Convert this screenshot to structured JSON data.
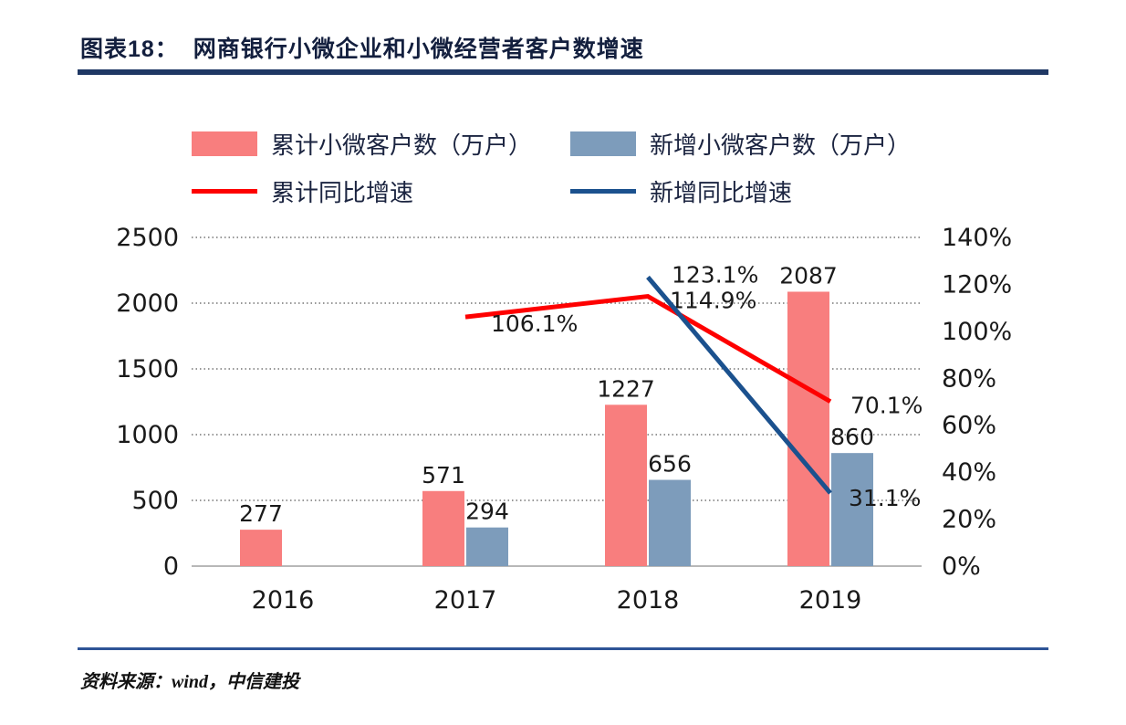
{
  "header": {
    "title": "图表18：  网商银行小微企业和小微经营者客户数增速"
  },
  "colors": {
    "rule_top": "#1f3864",
    "rule_bottom": "#2e5496",
    "title_text": "#131f3e",
    "cumulative_bar": "#f87e7e",
    "new_bar": "#7d9cbb",
    "cumulative_line": "#fe0000",
    "new_line": "#1b518e"
  },
  "legend": {
    "items": [
      {
        "label": "累计小微客户数（万户）",
        "type": "bar",
        "color": "#f87e7e"
      },
      {
        "label": "新增小微客户数（万户）",
        "type": "bar",
        "color": "#7d9cbb"
      },
      {
        "label": "累计同比增速",
        "type": "line",
        "color": "#fe0000"
      },
      {
        "label": "新增同比增速",
        "type": "line",
        "color": "#1b518e"
      }
    ]
  },
  "chart_data": {
    "type": "bar+line",
    "title": "网商银行小微企业和小微经营者客户数增速",
    "categories": [
      "2016",
      "2017",
      "2018",
      "2019"
    ],
    "bar_series": [
      {
        "name": "累计小微客户数（万户）",
        "color": "#f87e7e",
        "axis": "left",
        "values": [
          277,
          571,
          1227,
          2087
        ]
      },
      {
        "name": "新增小微客户数（万户）",
        "color": "#7d9cbb",
        "axis": "left",
        "values": [
          null,
          294,
          656,
          860
        ]
      }
    ],
    "line_series": [
      {
        "name": "累计同比增速",
        "color": "#fe0000",
        "axis": "right",
        "values": [
          null,
          106.1,
          114.9,
          70.1
        ],
        "point_labels": [
          null,
          "106.1%",
          "114.9%",
          "70.1%"
        ]
      },
      {
        "name": "新增同比增速",
        "color": "#1b518e",
        "axis": "right",
        "values": [
          null,
          null,
          123.1,
          31.1
        ],
        "point_labels": [
          null,
          null,
          "123.1%",
          "31.1%"
        ]
      }
    ],
    "left_axis": {
      "min": 0,
      "max": 2500,
      "tick_labels": [
        "0",
        "500",
        "1000",
        "1500",
        "2000",
        "2500"
      ]
    },
    "right_axis": {
      "min": 0,
      "max": 140,
      "tick_labels": [
        "0%",
        "20%",
        "40%",
        "60%",
        "80%",
        "100%",
        "120%",
        "140%"
      ]
    },
    "grid": "horizontal-dotted",
    "legend_position": "top"
  },
  "footer": {
    "source": "资料来源：wind，中信建投"
  }
}
